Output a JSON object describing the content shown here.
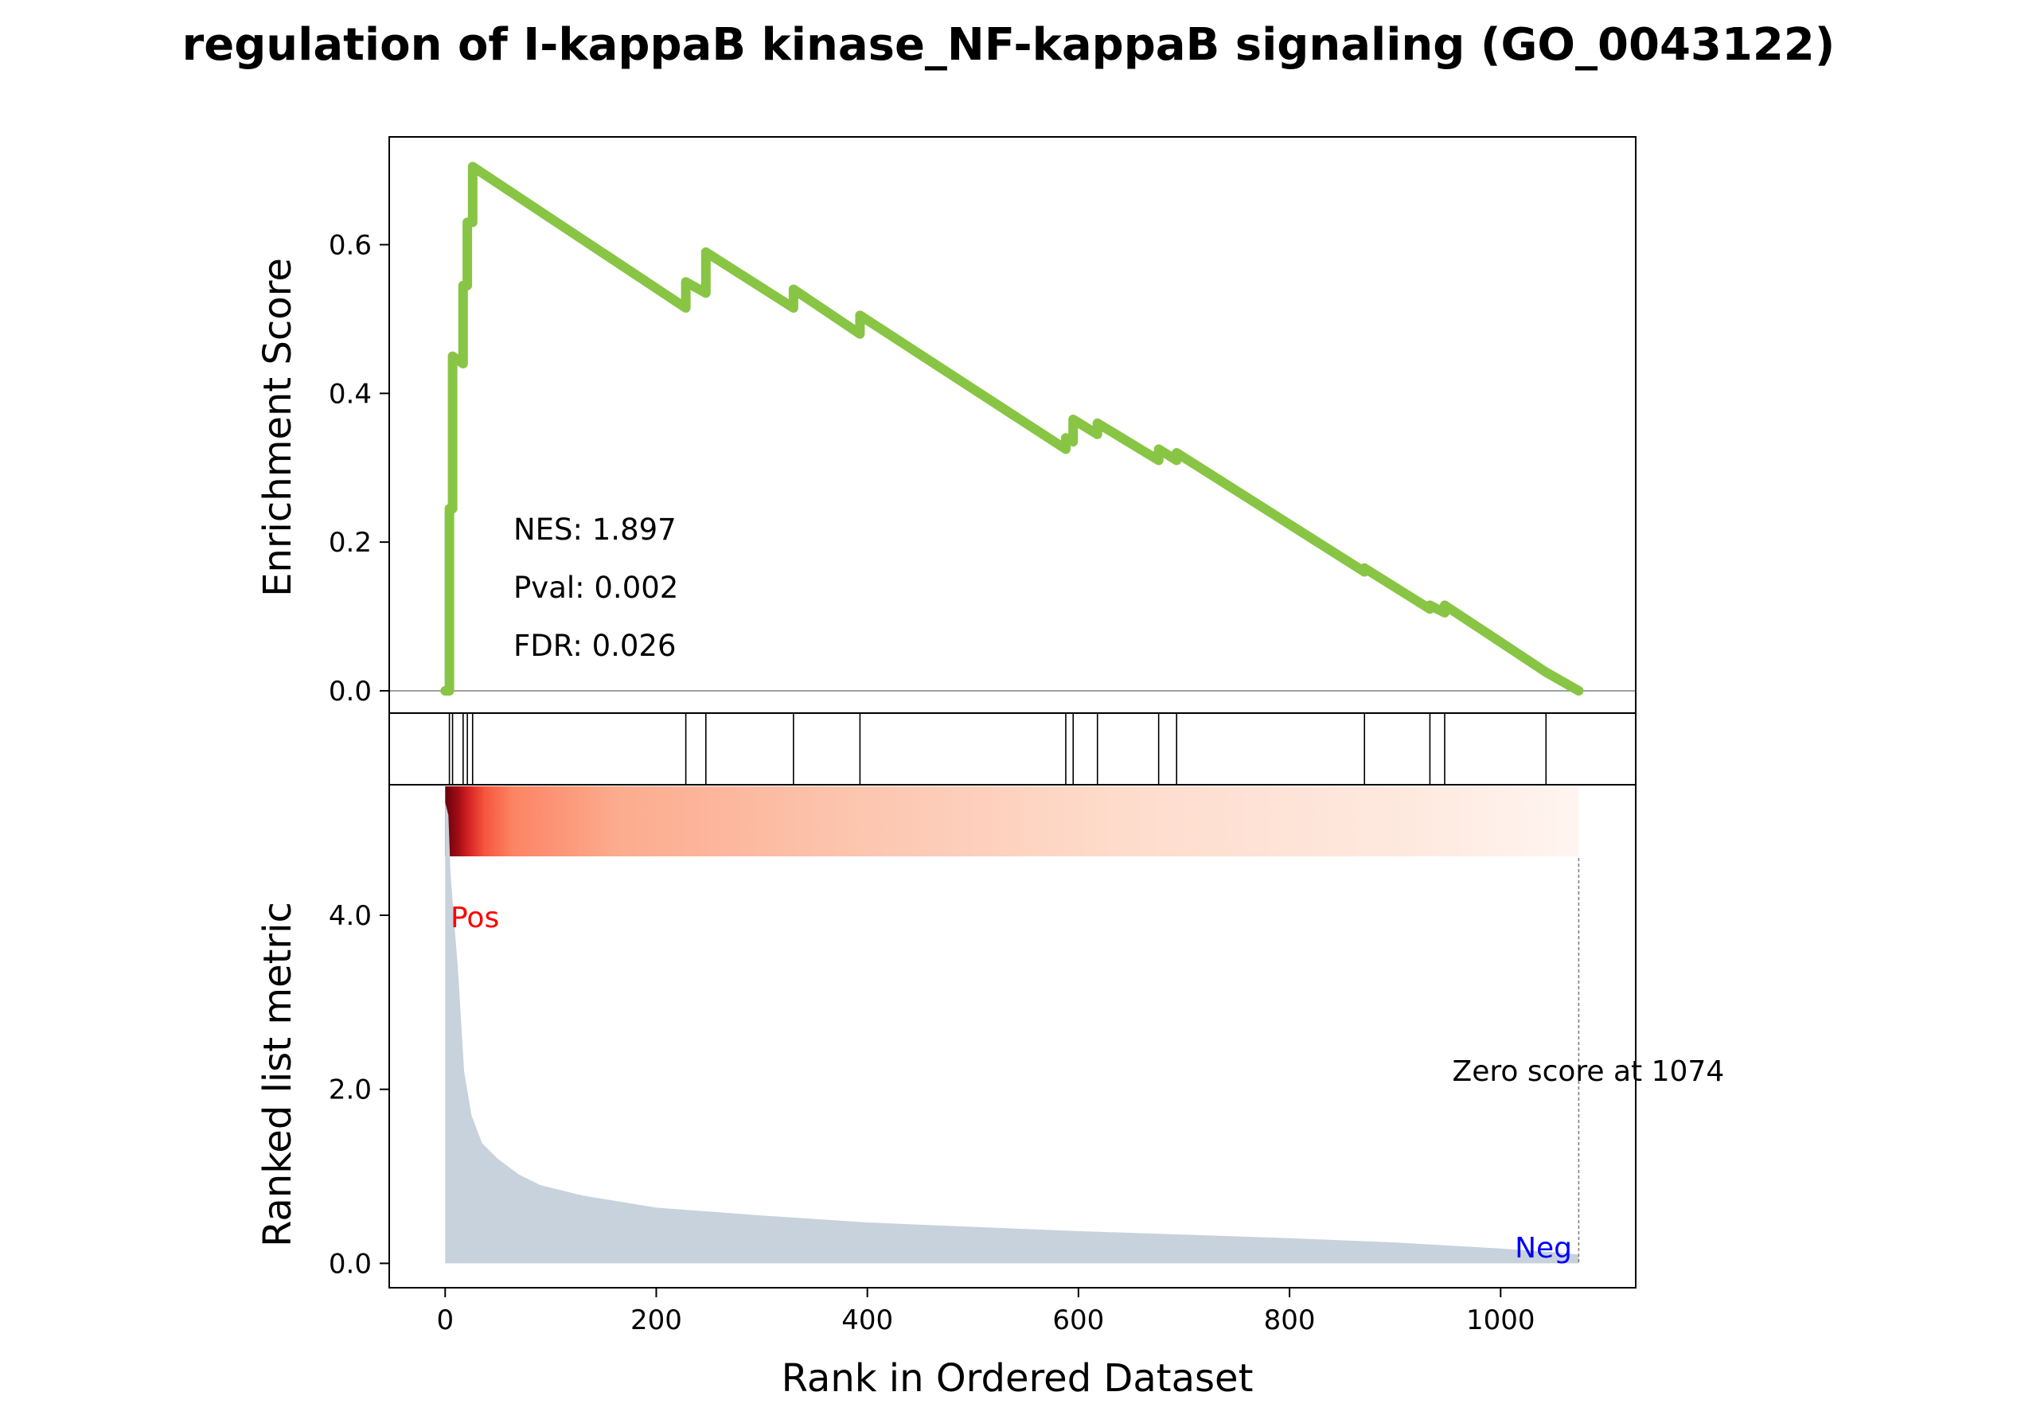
{
  "chart_data": {
    "type": "line",
    "title": "regulation of I-kappaB kinase_NF-kappaB signaling (GO_0043122)",
    "xlabel": "Rank in Ordered Dataset",
    "xlim": [
      -53,
      1128
    ],
    "xticks": [
      0,
      200,
      400,
      600,
      800,
      1000
    ],
    "xtick_labels": [
      "0",
      "200",
      "400",
      "600",
      "800",
      "1000"
    ],
    "es_panel": {
      "ylabel": "Enrichment Score",
      "ylim": [
        -0.03,
        0.745
      ],
      "yticks": [
        0.0,
        0.2,
        0.4,
        0.6
      ],
      "ytick_labels": [
        "0.0",
        "0.2",
        "0.4",
        "0.6"
      ],
      "line_color": "#88c544",
      "zero_line": true,
      "stats": [
        "NES: 1.897",
        "Pval: 0.002",
        "FDR: 0.026"
      ],
      "curve": [
        [
          0,
          0.0
        ],
        [
          4,
          0.0
        ],
        [
          4,
          0.245
        ],
        [
          7,
          0.245
        ],
        [
          7,
          0.45
        ],
        [
          17,
          0.44
        ],
        [
          17,
          0.545
        ],
        [
          21,
          0.545
        ],
        [
          21,
          0.63
        ],
        [
          26,
          0.63
        ],
        [
          26,
          0.705
        ],
        [
          228,
          0.515
        ],
        [
          228,
          0.55
        ],
        [
          247,
          0.535
        ],
        [
          247,
          0.59
        ],
        [
          330,
          0.515
        ],
        [
          330,
          0.54
        ],
        [
          393,
          0.48
        ],
        [
          393,
          0.505
        ],
        [
          588,
          0.325
        ],
        [
          588,
          0.34
        ],
        [
          595,
          0.335
        ],
        [
          595,
          0.365
        ],
        [
          618,
          0.345
        ],
        [
          618,
          0.36
        ],
        [
          676,
          0.31
        ],
        [
          676,
          0.325
        ],
        [
          693,
          0.31
        ],
        [
          693,
          0.32
        ],
        [
          871,
          0.16
        ],
        [
          871,
          0.165
        ],
        [
          933,
          0.11
        ],
        [
          933,
          0.115
        ],
        [
          947,
          0.105
        ],
        [
          947,
          0.115
        ],
        [
          1043,
          0.025
        ],
        [
          1074,
          0.0
        ]
      ]
    },
    "hits": [
      4,
      7,
      17,
      21,
      26,
      228,
      247,
      330,
      393,
      588,
      595,
      618,
      676,
      693,
      871,
      933,
      947,
      1043
    ],
    "heatmap": {
      "colormap": "Reds",
      "direction": "decreasing"
    },
    "ranked_panel": {
      "ylabel": "Ranked list metric",
      "ylim": [
        -0.28,
        5.5
      ],
      "yticks": [
        0.0,
        2.0,
        4.0
      ],
      "ytick_labels": [
        "0.0",
        "2.0",
        "4.0"
      ],
      "fill_color": "#c8d2dc",
      "metric": [
        [
          0,
          5.3
        ],
        [
          3,
          5.15
        ],
        [
          5,
          4.5
        ],
        [
          8,
          4.0
        ],
        [
          12,
          3.4
        ],
        [
          15,
          2.8
        ],
        [
          18,
          2.2
        ],
        [
          25,
          1.7
        ],
        [
          35,
          1.38
        ],
        [
          50,
          1.2
        ],
        [
          70,
          1.02
        ],
        [
          90,
          0.9
        ],
        [
          130,
          0.78
        ],
        [
          200,
          0.64
        ],
        [
          300,
          0.55
        ],
        [
          400,
          0.47
        ],
        [
          500,
          0.42
        ],
        [
          600,
          0.37
        ],
        [
          700,
          0.33
        ],
        [
          800,
          0.29
        ],
        [
          900,
          0.24
        ],
        [
          1000,
          0.17
        ],
        [
          1050,
          0.13
        ],
        [
          1074,
          0.1
        ]
      ],
      "pos_label": "Pos",
      "neg_label": "Neg",
      "zero_score_label": "Zero score at 1074",
      "zero_score_rank": 1074
    }
  }
}
